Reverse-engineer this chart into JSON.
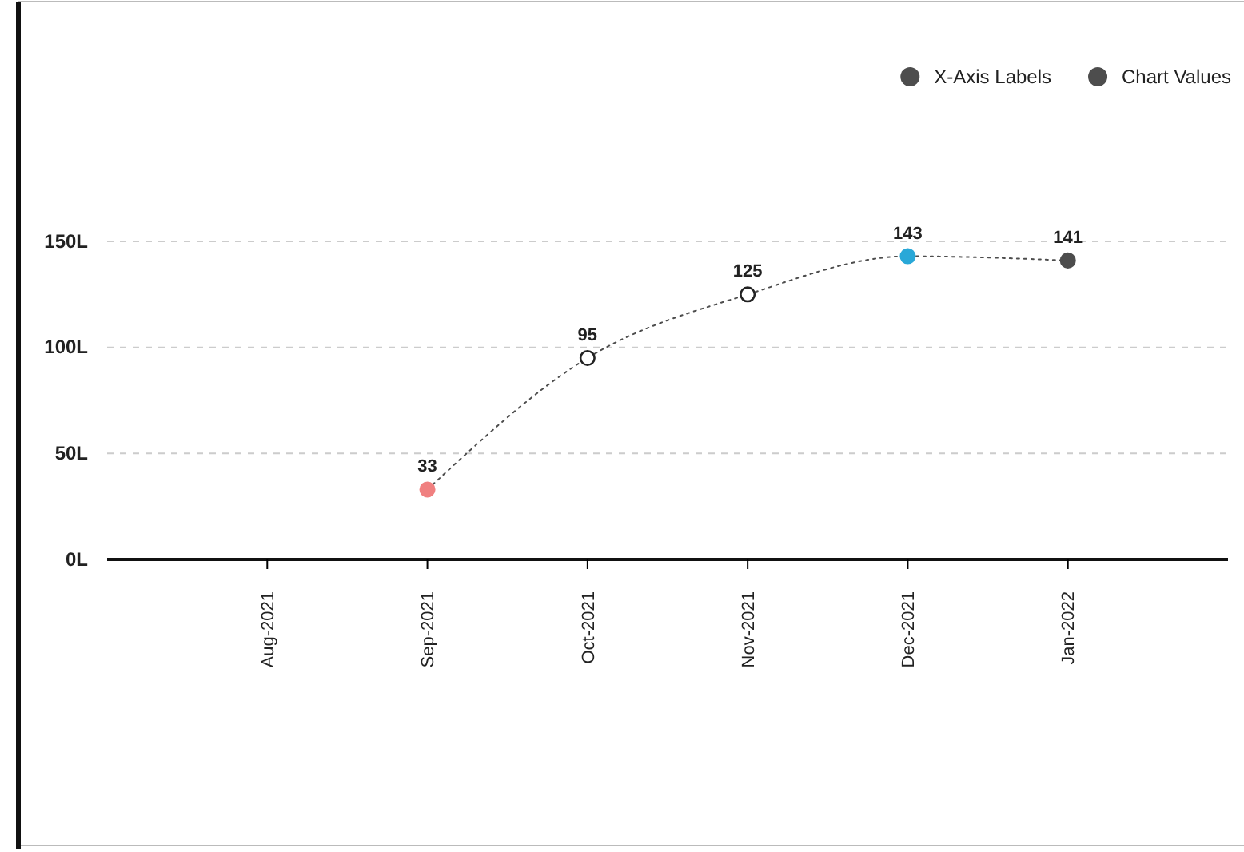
{
  "chart_data": {
    "type": "line",
    "categories": [
      "Aug-2021",
      "Sep-2021",
      "Oct-2021",
      "Nov-2021",
      "Dec-2021",
      "Jan-2022"
    ],
    "series": [
      {
        "name": "X-Axis Labels",
        "color": "#4d4d4d",
        "values": [
          null,
          null,
          null,
          null,
          null,
          null
        ]
      },
      {
        "name": "Chart Values",
        "color": "#4d4d4d",
        "values": [
          null,
          33,
          95,
          125,
          143,
          141
        ],
        "colors": [
          null,
          "#f08080",
          "#ffffff",
          "#ffffff",
          "#29a8d8",
          "#4d4d4d"
        ]
      }
    ],
    "ylim": [
      0,
      150
    ],
    "yticks": [
      {
        "value": 0,
        "label": "0L"
      },
      {
        "value": 50,
        "label": "50L"
      },
      {
        "value": 100,
        "label": "100L"
      },
      {
        "value": 150,
        "label": "150L"
      }
    ],
    "grid": "y",
    "legend": "top right",
    "marker": "circle",
    "line_style": "dotted",
    "data_labels": true
  }
}
